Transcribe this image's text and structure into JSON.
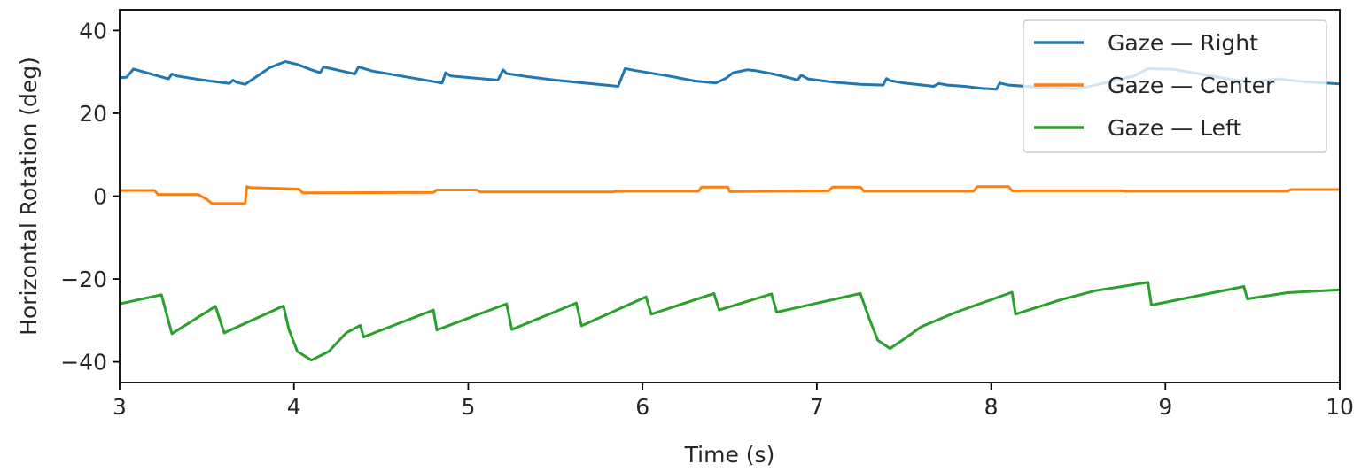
{
  "chart_data": {
    "type": "line",
    "title": "",
    "xlabel": "Time (s)",
    "ylabel": "Horizontal Rotation (deg)",
    "xlim": [
      3,
      10
    ],
    "ylim": [
      -45,
      45
    ],
    "xticks": [
      3,
      4,
      5,
      6,
      7,
      8,
      9,
      10
    ],
    "xtick_labels": [
      "3",
      "4",
      "5",
      "6",
      "7",
      "8",
      "9",
      "10"
    ],
    "yticks": [
      -40,
      -20,
      0,
      20,
      40
    ],
    "ytick_labels": [
      "−40",
      "−20",
      "0",
      "20",
      "40"
    ],
    "grid": false,
    "legend": "top-right",
    "series": [
      {
        "name": "Gaze — Right",
        "color": "#1f77b4",
        "x": [
          3.0,
          3.04,
          3.08,
          3.28,
          3.3,
          3.33,
          3.48,
          3.63,
          3.65,
          3.67,
          3.72,
          3.86,
          3.95,
          4.02,
          4.1,
          4.15,
          4.17,
          4.35,
          4.37,
          4.45,
          4.85,
          4.87,
          4.9,
          5.17,
          5.2,
          5.22,
          5.35,
          5.5,
          5.86,
          5.9,
          5.95,
          6.15,
          6.3,
          6.42,
          6.48,
          6.52,
          6.6,
          6.65,
          6.75,
          6.85,
          6.89,
          6.91,
          6.95,
          7.1,
          7.25,
          7.38,
          7.4,
          7.42,
          7.5,
          7.67,
          7.7,
          7.75,
          7.85,
          7.95,
          8.03,
          8.05,
          8.1,
          8.3,
          8.5,
          8.7,
          8.82,
          8.9,
          9.05,
          9.2,
          9.4,
          9.5,
          9.65,
          9.8,
          10.0
        ],
        "y": [
          28.6,
          28.7,
          30.7,
          28.3,
          29.5,
          29.0,
          28.0,
          27.2,
          28.0,
          27.5,
          27.0,
          31.0,
          32.5,
          31.8,
          30.5,
          29.8,
          31.2,
          29.5,
          31.2,
          30.2,
          27.3,
          29.8,
          29.0,
          28.0,
          30.5,
          29.6,
          28.8,
          28.0,
          26.5,
          30.8,
          30.4,
          29.0,
          27.8,
          27.3,
          28.5,
          29.8,
          30.5,
          30.3,
          29.5,
          28.5,
          28.0,
          29.2,
          28.3,
          27.5,
          27.0,
          26.8,
          28.4,
          27.9,
          27.3,
          26.5,
          27.2,
          26.8,
          26.5,
          26.0,
          25.8,
          27.3,
          26.8,
          26.2,
          25.9,
          27.8,
          29.0,
          30.8,
          30.6,
          29.5,
          28.0,
          27.6,
          28.3,
          27.6,
          27.1
        ]
      },
      {
        "name": "Gaze — Center",
        "color": "#ff7f0e",
        "x": [
          3.0,
          3.2,
          3.22,
          3.45,
          3.5,
          3.53,
          3.72,
          3.73,
          3.75,
          4.03,
          4.05,
          4.8,
          4.82,
          5.05,
          5.07,
          5.83,
          5.85,
          6.32,
          6.34,
          6.49,
          6.5,
          7.07,
          7.09,
          7.25,
          7.27,
          7.9,
          7.92,
          8.1,
          8.12,
          8.75,
          8.77,
          9.7,
          9.72,
          10.0
        ],
        "y": [
          1.4,
          1.4,
          0.4,
          0.4,
          -0.8,
          -1.8,
          -1.8,
          2.3,
          2.1,
          1.7,
          0.8,
          0.9,
          1.5,
          1.5,
          1.0,
          1.0,
          1.2,
          1.2,
          2.2,
          2.2,
          1.1,
          1.3,
          2.2,
          2.2,
          1.2,
          1.2,
          2.3,
          2.3,
          1.3,
          1.3,
          1.2,
          1.2,
          1.6,
          1.6
        ]
      },
      {
        "name": "Gaze — Left",
        "color": "#2ca02c",
        "x": [
          3.0,
          3.24,
          3.3,
          3.55,
          3.6,
          3.94,
          3.97,
          4.02,
          4.1,
          4.2,
          4.3,
          4.38,
          4.4,
          4.4,
          4.8,
          4.82,
          5.22,
          5.25,
          5.62,
          5.65,
          6.02,
          6.05,
          6.41,
          6.44,
          6.74,
          6.77,
          7.25,
          7.3,
          7.35,
          7.42,
          7.5,
          7.6,
          7.8,
          8.12,
          8.14,
          8.4,
          8.6,
          8.9,
          8.92,
          9.45,
          9.47,
          9.7,
          10.0
        ],
        "y": [
          -26.0,
          -23.8,
          -33.2,
          -26.6,
          -33.0,
          -26.5,
          -32.0,
          -37.5,
          -39.6,
          -37.5,
          -33.0,
          -31.2,
          -34.0,
          -34.0,
          -27.5,
          -32.3,
          -26.0,
          -32.2,
          -25.8,
          -31.3,
          -24.3,
          -28.5,
          -23.5,
          -27.5,
          -23.6,
          -28.0,
          -23.5,
          -29.5,
          -34.8,
          -36.8,
          -34.5,
          -31.5,
          -28.0,
          -23.2,
          -28.5,
          -25.0,
          -22.8,
          -20.8,
          -26.3,
          -21.8,
          -24.8,
          -23.3,
          -22.6
        ]
      }
    ]
  }
}
